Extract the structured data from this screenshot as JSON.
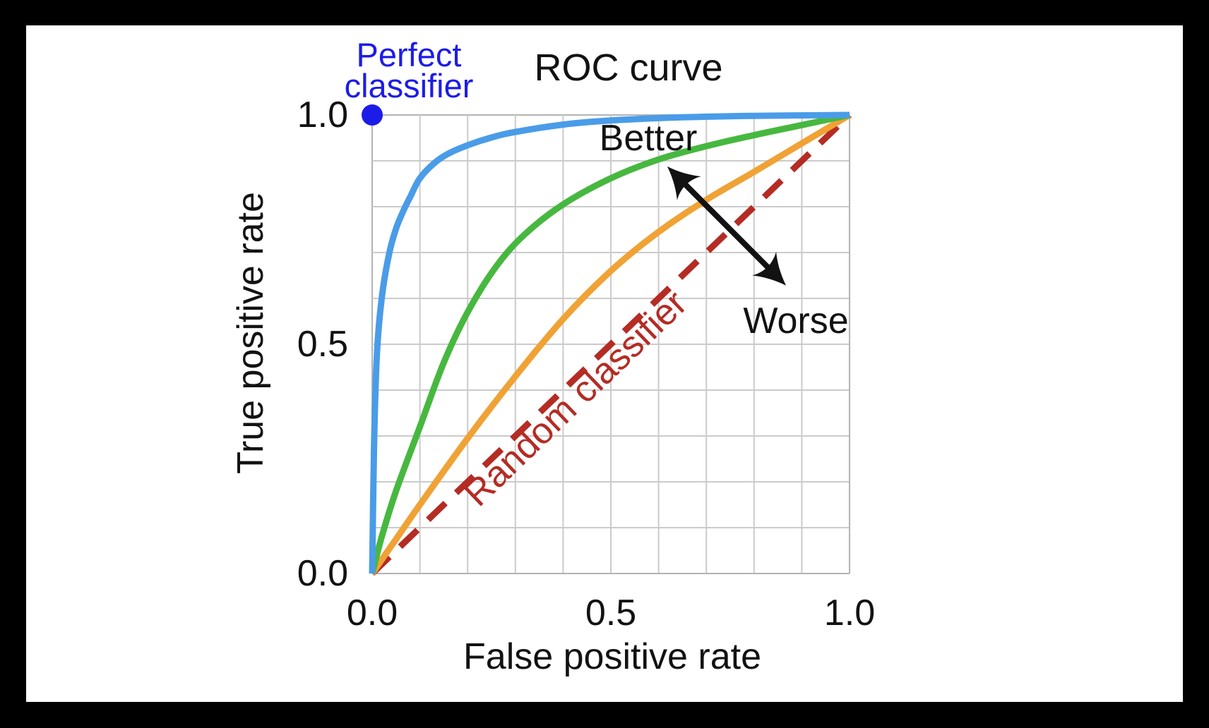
{
  "window": {
    "background": "#000000",
    "canvas": "#ffffff"
  },
  "title": "ROC curve",
  "labels": {
    "perfect_classifier": "Perfect\nclassifier",
    "better": "Better",
    "worse": "Worse",
    "random_classifier": "Random classifier"
  },
  "axes": {
    "x_title": "False positive rate",
    "y_title": "True positive rate",
    "x_ticks": [
      "0.0",
      "0.5",
      "1.0"
    ],
    "y_ticks": [
      "1.0",
      "0.5",
      "0.0"
    ],
    "x_tick_values": [
      0,
      0.5,
      1.0
    ],
    "y_tick_values": [
      1.0,
      0.5,
      0.0
    ],
    "grid_step": 0.1
  },
  "colors": {
    "excellent_curve": "#4a9ce8",
    "good_curve": "#47b83f",
    "fair_curve": "#f0a235",
    "random_line": "#b42c24",
    "perfect_point": "#1c1ce8",
    "annotation": "#121212",
    "grid": "#cbcbcb",
    "frame": "#b3b3b3"
  },
  "chart_data": {
    "type": "line",
    "title": "ROC curve",
    "xlabel": "False positive rate",
    "ylabel": "True positive rate",
    "xlim": [
      0,
      1
    ],
    "ylim": [
      0,
      1
    ],
    "grid": true,
    "grid_step": 0.1,
    "series": [
      {
        "name": "random classifier (chance diagonal)",
        "color": "#b42c24",
        "style": "dashed",
        "points": [
          [
            0,
            0
          ],
          [
            1,
            1
          ]
        ]
      },
      {
        "name": "fair classifier (orange)",
        "color": "#f0a235",
        "style": "solid",
        "points": [
          [
            0,
            0
          ],
          [
            0.05,
            0.075
          ],
          [
            0.1,
            0.15
          ],
          [
            0.2,
            0.295
          ],
          [
            0.3,
            0.43
          ],
          [
            0.4,
            0.555
          ],
          [
            0.5,
            0.66
          ],
          [
            0.6,
            0.745
          ],
          [
            0.7,
            0.815
          ],
          [
            0.8,
            0.876
          ],
          [
            0.9,
            0.938
          ],
          [
            1,
            1
          ]
        ]
      },
      {
        "name": "good classifier (green)",
        "color": "#47b83f",
        "style": "solid",
        "points": [
          [
            0,
            0
          ],
          [
            0.02,
            0.08
          ],
          [
            0.05,
            0.18
          ],
          [
            0.1,
            0.32
          ],
          [
            0.15,
            0.46
          ],
          [
            0.2,
            0.57
          ],
          [
            0.26,
            0.67
          ],
          [
            0.32,
            0.74
          ],
          [
            0.4,
            0.805
          ],
          [
            0.5,
            0.862
          ],
          [
            0.6,
            0.903
          ],
          [
            0.7,
            0.932
          ],
          [
            0.8,
            0.956
          ],
          [
            0.9,
            0.978
          ],
          [
            1,
            1
          ]
        ]
      },
      {
        "name": "excellent classifier (blue)",
        "color": "#4a9ce8",
        "style": "solid",
        "points": [
          [
            0,
            0
          ],
          [
            0.004,
            0.28
          ],
          [
            0.01,
            0.48
          ],
          [
            0.02,
            0.6
          ],
          [
            0.035,
            0.695
          ],
          [
            0.05,
            0.752
          ],
          [
            0.065,
            0.79
          ],
          [
            0.08,
            0.822
          ],
          [
            0.1,
            0.862
          ],
          [
            0.13,
            0.895
          ],
          [
            0.16,
            0.916
          ],
          [
            0.2,
            0.934
          ],
          [
            0.25,
            0.951
          ],
          [
            0.3,
            0.963
          ],
          [
            0.4,
            0.979
          ],
          [
            0.5,
            0.988
          ],
          [
            0.65,
            0.995
          ],
          [
            0.8,
            0.998
          ],
          [
            1,
            1
          ]
        ]
      }
    ],
    "annotations": {
      "perfect_classifier_point": {
        "x": 0,
        "y": 1,
        "label": "Perfect\nclassifier",
        "color": "#1c1ce8"
      },
      "better_worse_arrow": {
        "better_tip": [
          0.618,
          0.888
        ],
        "worse_tip": [
          0.867,
          0.628
        ],
        "better_label": "Better",
        "worse_label": "Worse",
        "color": "#121212"
      },
      "random_classifier_label": {
        "text": "Random classifier",
        "angle_deg": -43.9,
        "color": "#b42c24"
      }
    }
  }
}
